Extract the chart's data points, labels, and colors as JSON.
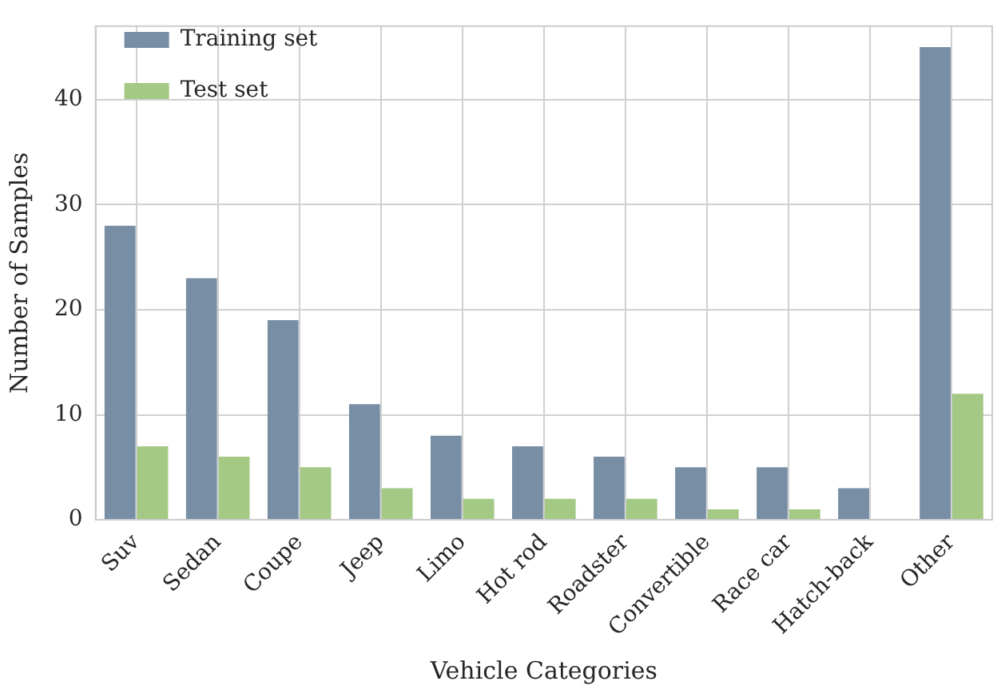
{
  "chart_data": {
    "type": "bar",
    "xlabel": "Vehicle Categories",
    "ylabel": "Number of Samples",
    "categories": [
      "Suv",
      "Sedan",
      "Coupe",
      "Jeep",
      "Limo",
      "Hot rod",
      "Roadster",
      "Convertible",
      "Race car",
      "Hatch-back",
      "Other"
    ],
    "series": [
      {
        "name": "Training set",
        "color": "#778ea5",
        "values": [
          28,
          23,
          19,
          11,
          8,
          7,
          6,
          5,
          5,
          3,
          45
        ]
      },
      {
        "name": "Test set",
        "color": "#a3c985",
        "values": [
          7,
          6,
          5,
          3,
          2,
          2,
          2,
          1,
          1,
          0,
          12
        ]
      }
    ],
    "ylim": [
      0,
      47
    ],
    "yticks": [
      0,
      10,
      20,
      30,
      40
    ],
    "grid": true,
    "legend": "top left"
  }
}
